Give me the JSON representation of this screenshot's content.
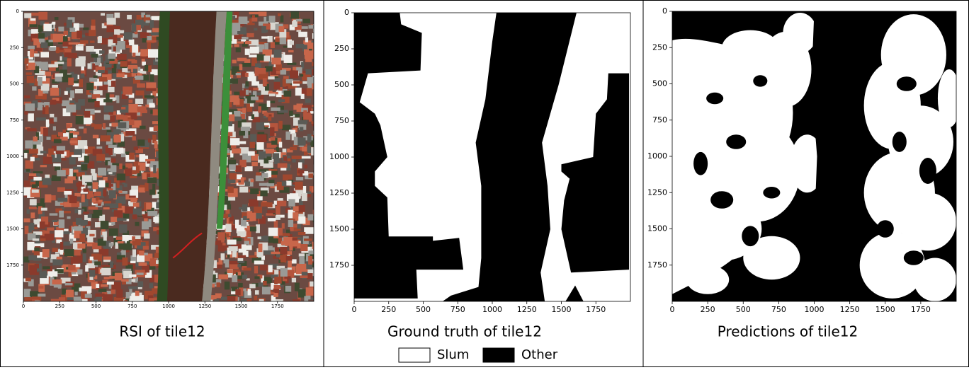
{
  "panels": [
    {
      "caption": "RSI of tile12",
      "xticks": [
        0,
        250,
        500,
        750,
        1000,
        1250,
        1500,
        1750
      ],
      "yticks": [
        0,
        250,
        500,
        750,
        1000,
        1250,
        1500,
        1750
      ],
      "xlim": [
        0,
        2000
      ],
      "ylim": [
        0,
        2000
      ]
    },
    {
      "caption": "Ground truth of tile12",
      "xticks": [
        0,
        250,
        500,
        750,
        1000,
        1250,
        1500,
        1750
      ],
      "yticks": [
        0,
        250,
        500,
        750,
        1000,
        1250,
        1500,
        1750
      ],
      "xlim": [
        0,
        2000
      ],
      "ylim": [
        0,
        2000
      ]
    },
    {
      "caption": "Predictions of tile12",
      "xticks": [
        0,
        250,
        500,
        750,
        1000,
        1250,
        1500,
        1750
      ],
      "yticks": [
        0,
        250,
        500,
        750,
        1000,
        1250,
        1500,
        1750
      ],
      "xlim": [
        0,
        2000
      ],
      "ylim": [
        0,
        2000
      ]
    }
  ],
  "legend": [
    {
      "label": "Slum",
      "color": "#ffffff"
    },
    {
      "label": "Other",
      "color": "#000000"
    }
  ]
}
